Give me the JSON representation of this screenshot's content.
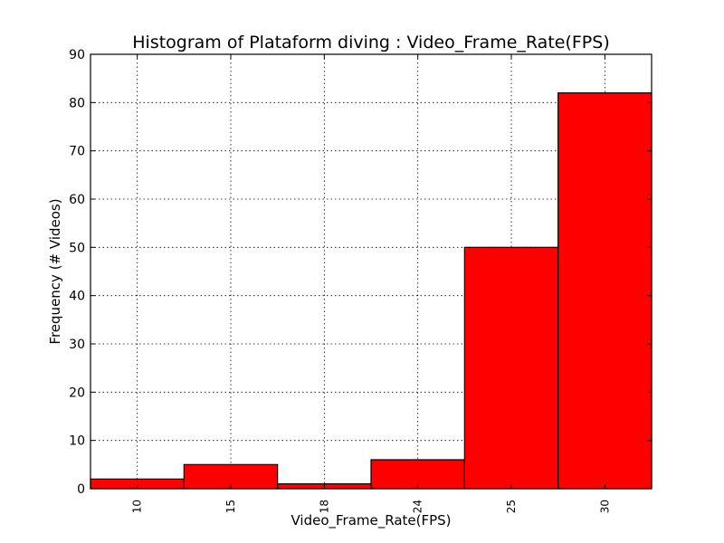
{
  "chart_data": {
    "type": "bar",
    "title": "Histogram of Plataform diving : Video_Frame_Rate(FPS)",
    "xlabel": "Video_Frame_Rate(FPS)",
    "ylabel": "Frequency (# Videos)",
    "categories": [
      "10",
      "15",
      "18",
      "24",
      "25",
      "30"
    ],
    "values": [
      2,
      5,
      1,
      6,
      50,
      82
    ],
    "ylim": [
      0,
      90
    ],
    "yticks": [
      0,
      10,
      20,
      30,
      40,
      50,
      60,
      70,
      80,
      90
    ],
    "grid": true,
    "bar_color": "#ff0000",
    "edge_color": "#000000"
  }
}
